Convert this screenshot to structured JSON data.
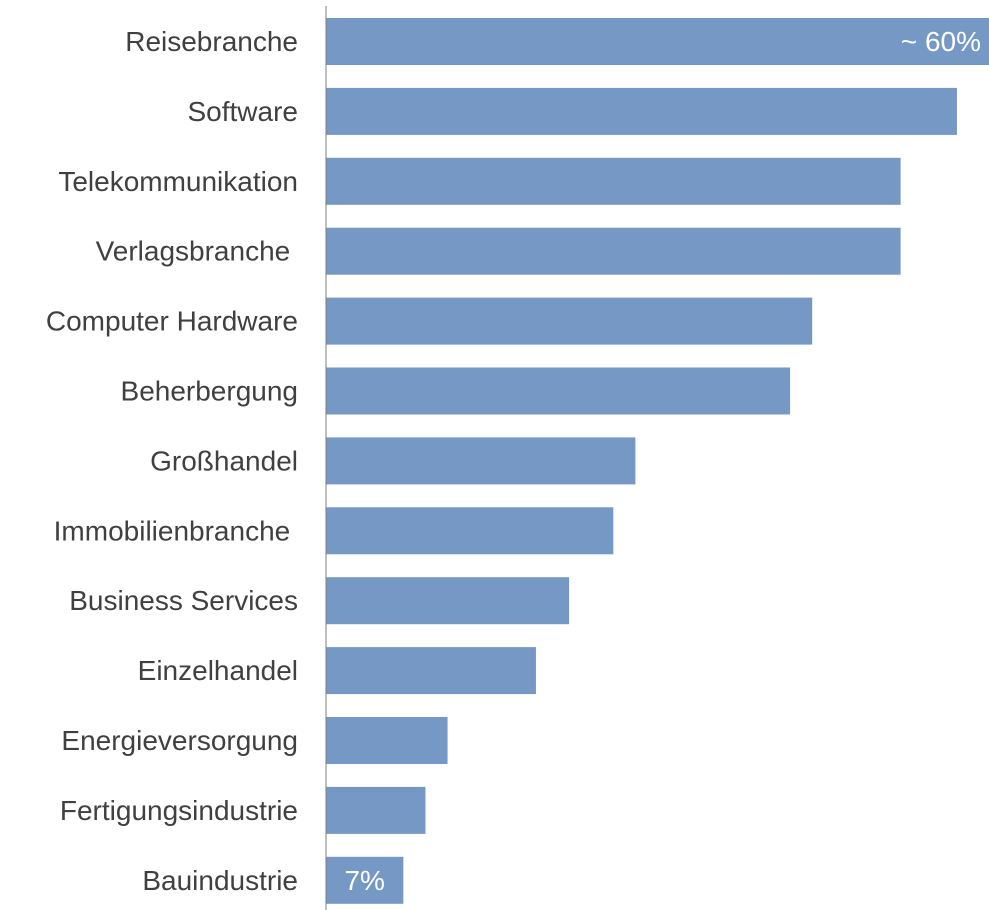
{
  "chart_data": {
    "type": "bar",
    "orientation": "horizontal",
    "categories": [
      "Reisebranche",
      "Software",
      "Telekommunikation",
      "Verlagsbranche ",
      "Computer Hardware",
      "Beherbergung",
      "Großhandel",
      "Immobilienbranche ",
      "Business Services",
      "Einzelhandel",
      "Energieversorgung",
      "Fertigungsindustrie",
      "Bauindustrie"
    ],
    "values": [
      60,
      57.1,
      52,
      52,
      44,
      42,
      28,
      26,
      22,
      19,
      11,
      9,
      7
    ],
    "data_labels": [
      {
        "category_index": 0,
        "text": "~ 60%"
      },
      {
        "category_index": 12,
        "text": "7%"
      }
    ],
    "xlim": [
      0,
      60
    ],
    "bar_color": "#7598C4",
    "axis_color": "#7f7f7f",
    "label_color": "#404040",
    "data_label_color": "#ffffff",
    "grid": false,
    "legend": "none",
    "title": "",
    "xlabel": "",
    "ylabel": ""
  }
}
